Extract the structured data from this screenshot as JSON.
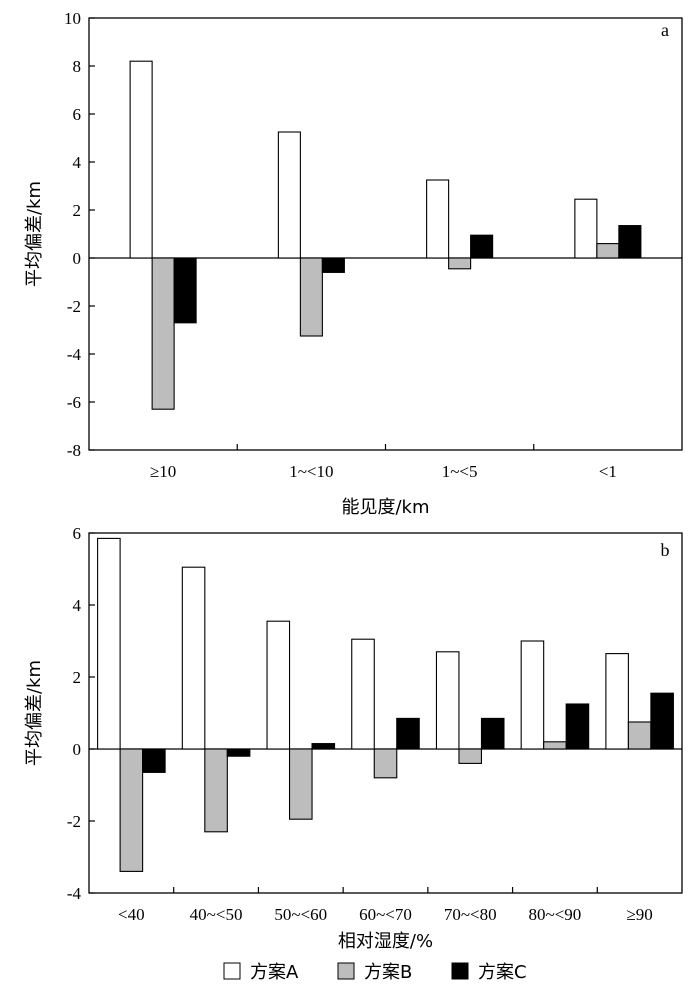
{
  "colors": {
    "series_A": "#ffffff",
    "series_B": "#bdbdbd",
    "series_C": "#000000",
    "axis": "#000000"
  },
  "legend": {
    "items": [
      "方案A",
      "方案B",
      "方案C"
    ]
  },
  "chart_data": [
    {
      "type": "bar",
      "panel": "a",
      "categories": [
        "≥10",
        "1~<10",
        "1~<5",
        "<1"
      ],
      "series": [
        {
          "name": "方案A",
          "values": [
            8.2,
            5.25,
            3.25,
            2.45
          ]
        },
        {
          "name": "方案B",
          "values": [
            -6.3,
            -3.25,
            -0.45,
            0.6
          ]
        },
        {
          "name": "方案C",
          "values": [
            -2.7,
            -0.6,
            0.95,
            1.35
          ]
        }
      ],
      "xlabel": "能见度/km",
      "ylabel": "平均偏差/km",
      "ylim": [
        -8,
        10
      ],
      "yticks": [
        10,
        8,
        6,
        4,
        2,
        0,
        -2,
        -4,
        -6,
        -8
      ],
      "grid": false,
      "legend": "bottom"
    },
    {
      "type": "bar",
      "panel": "b",
      "categories": [
        "<40",
        "40~<50",
        "50~<60",
        "60~<70",
        "70~<80",
        "80~<90",
        "≥90"
      ],
      "series": [
        {
          "name": "方案A",
          "values": [
            5.85,
            5.05,
            3.55,
            3.05,
            2.7,
            3.0,
            2.65
          ]
        },
        {
          "name": "方案B",
          "values": [
            -3.4,
            -2.3,
            -1.95,
            -0.8,
            -0.4,
            0.2,
            0.75
          ]
        },
        {
          "name": "方案C",
          "values": [
            -0.65,
            -0.2,
            0.15,
            0.85,
            0.85,
            1.25,
            1.55
          ]
        }
      ],
      "xlabel": "相对湿度/%",
      "ylabel": "平均偏差/km",
      "ylim": [
        -4,
        6
      ],
      "yticks": [
        6,
        4,
        2,
        0,
        -2,
        -4
      ],
      "grid": false,
      "legend": "bottom"
    }
  ]
}
